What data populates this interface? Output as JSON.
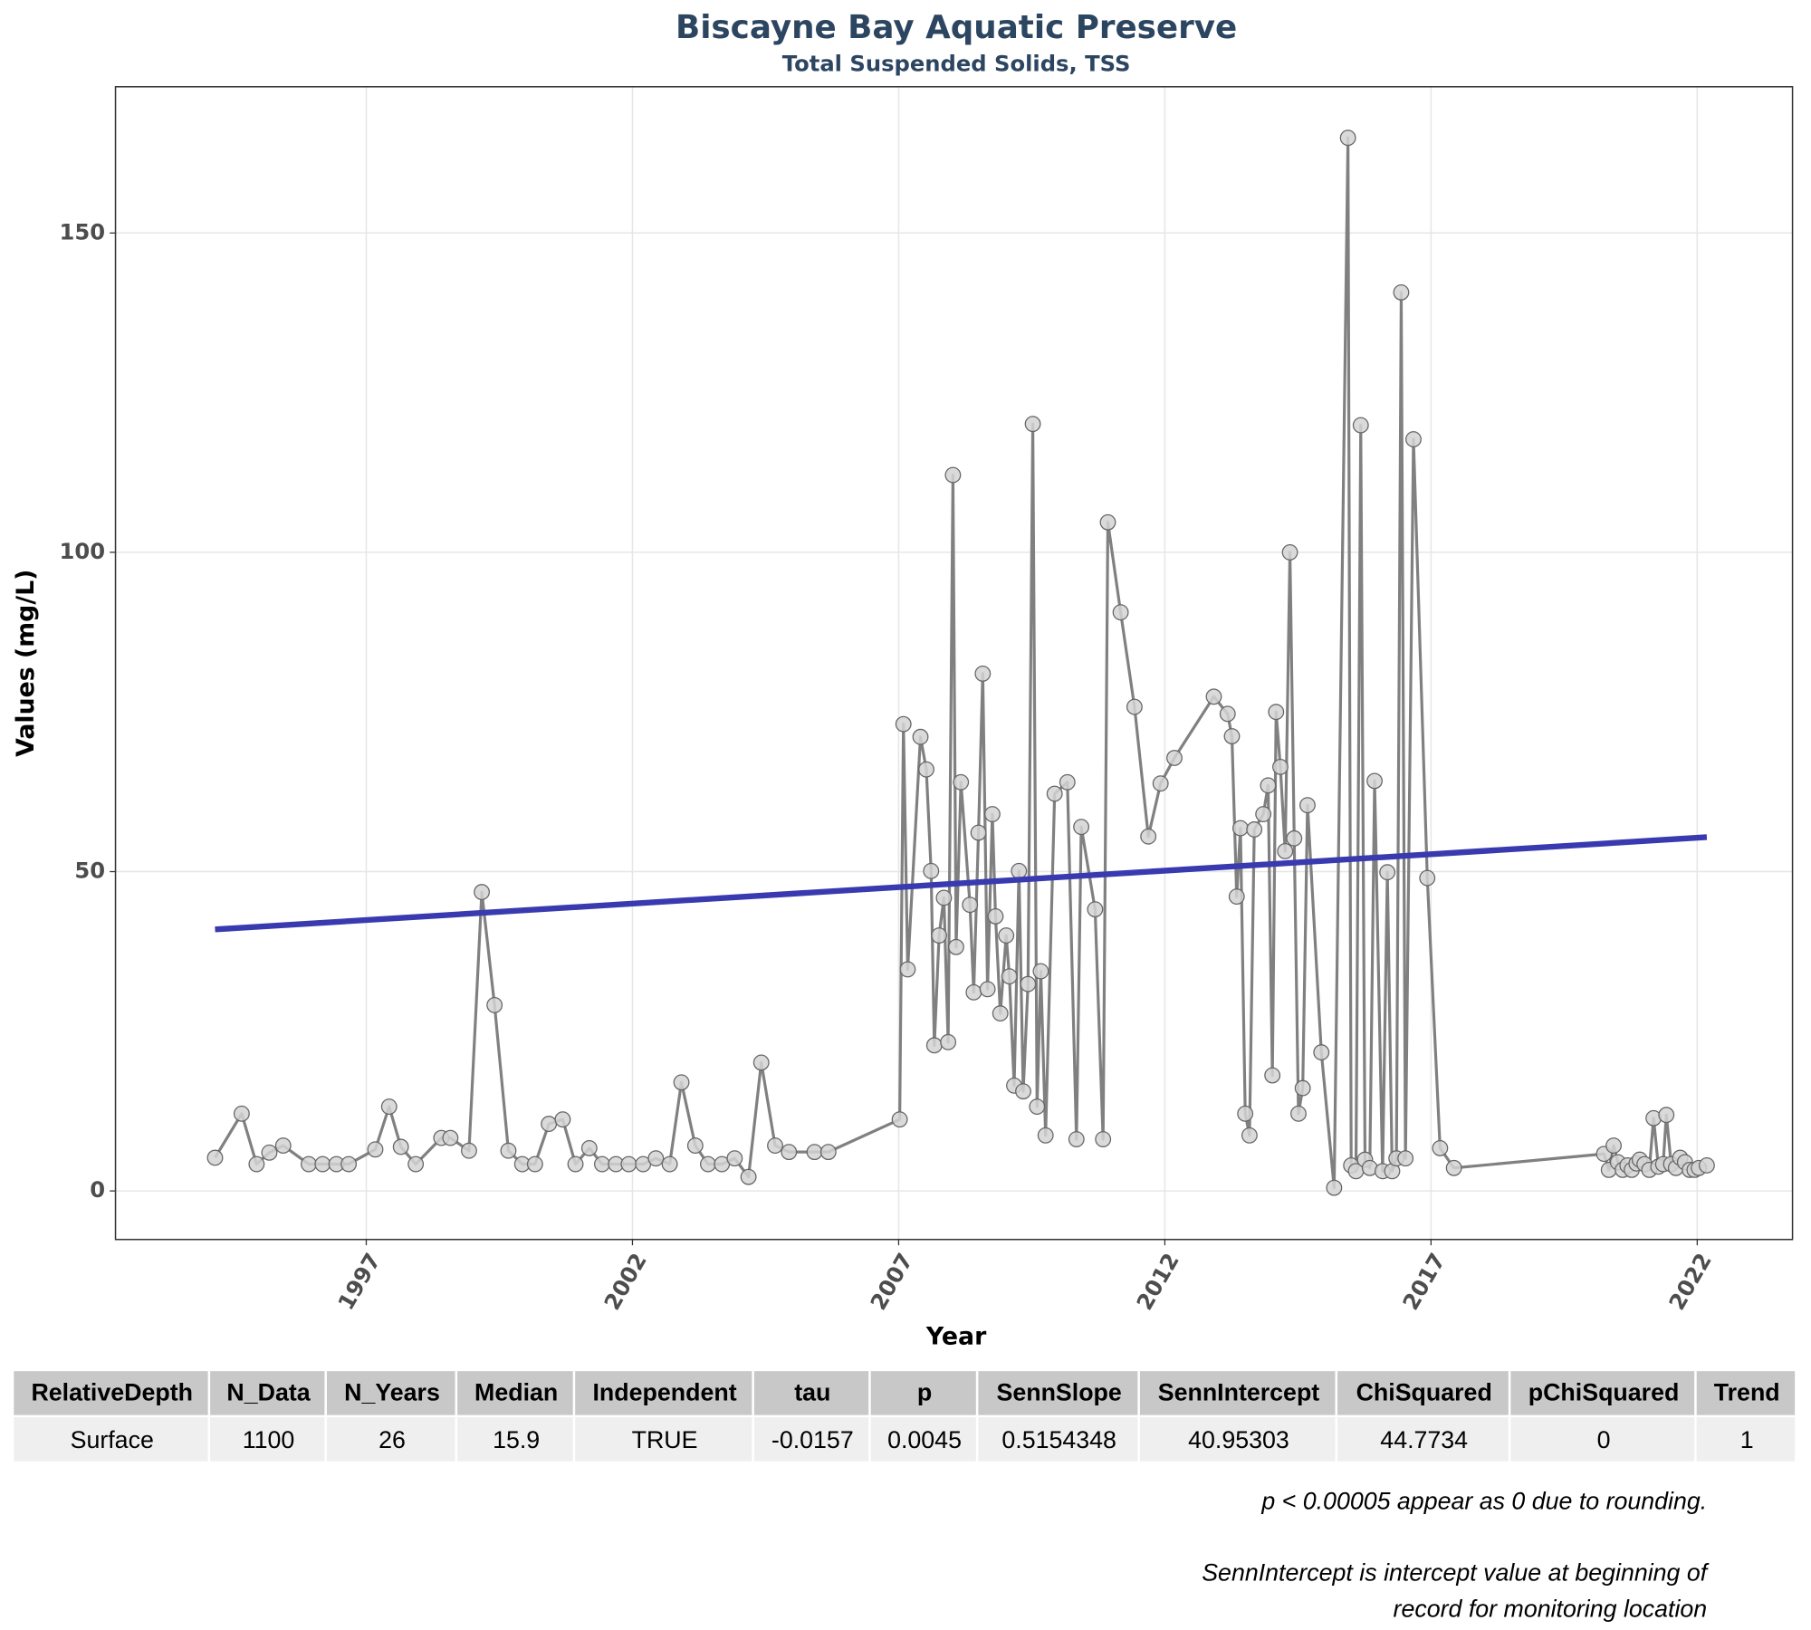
{
  "chart_data": {
    "type": "line",
    "title": "Biscayne Bay Aquatic Preserve",
    "subtitle": "Total Suspended Solids, TSS",
    "x_label": "Year",
    "y_label": "Values (mg/L)",
    "xlim": [
      1992.29,
      2023.79
    ],
    "ylim": [
      -7.6,
      172.9
    ],
    "xticks": [
      1997,
      2002,
      2007,
      2012,
      2017,
      2022
    ],
    "yticks": [
      0,
      50,
      100,
      150
    ],
    "grid": true,
    "series": [
      {
        "color": "#808080",
        "marker_color": "#d3d3d3",
        "x": [
          1994.16,
          1994.66,
          1994.94,
          1995.18,
          1995.44,
          1995.92,
          1996.18,
          1996.44,
          1996.67,
          1997.17,
          1997.43,
          1997.65,
          1997.93,
          1998.41,
          1998.58,
          1998.93,
          1999.17,
          1999.41,
          1999.67,
          1999.93,
          2000.17,
          2000.43,
          2000.69,
          2000.93,
          2001.19,
          2001.43,
          2001.69,
          2001.93,
          2002.2,
          2002.44,
          2002.7,
          2002.92,
          2003.18,
          2003.42,
          2003.68,
          2003.92,
          2004.18,
          2004.42,
          2004.68,
          2004.94,
          2005.42,
          2005.68,
          2007.02,
          2007.09,
          2007.17,
          2007.41,
          2007.52,
          2007.61,
          2007.67,
          2007.76,
          2007.85,
          2007.93,
          2008.02,
          2008.08,
          2008.17,
          2008.34,
          2008.41,
          2008.5,
          2008.58,
          2008.67,
          2008.76,
          2008.82,
          2008.91,
          2009.02,
          2009.08,
          2009.17,
          2009.26,
          2009.34,
          2009.43,
          2009.52,
          2009.6,
          2009.67,
          2009.76,
          2009.93,
          2010.17,
          2010.34,
          2010.43,
          2010.69,
          2010.84,
          2010.93,
          2011.17,
          2011.43,
          2011.69,
          2011.92,
          2012.18,
          2012.92,
          2013.18,
          2013.26,
          2013.35,
          2013.42,
          2013.51,
          2013.59,
          2013.68,
          2013.85,
          2013.94,
          2014.02,
          2014.09,
          2014.17,
          2014.26,
          2014.35,
          2014.43,
          2014.51,
          2014.59,
          2014.68,
          2014.94,
          2015.18,
          2015.44,
          2015.5,
          2015.59,
          2015.68,
          2015.76,
          2015.85,
          2015.94,
          2016.09,
          2016.18,
          2016.27,
          2016.35,
          2016.44,
          2016.52,
          2016.67,
          2016.93,
          2017.17,
          2017.43,
          2020.25,
          2020.34,
          2020.43,
          2020.51,
          2020.6,
          2020.69,
          2020.77,
          2020.86,
          2020.92,
          2021.01,
          2021.1,
          2021.18,
          2021.27,
          2021.36,
          2021.42,
          2021.51,
          2021.6,
          2021.68,
          2021.77,
          2021.86,
          2021.95,
          2022.03,
          2022.18
        ],
        "values": [
          5.2,
          12.1,
          4.2,
          6.0,
          7.1,
          4.2,
          4.2,
          4.2,
          4.2,
          6.5,
          13.2,
          6.9,
          4.2,
          8.3,
          8.3,
          6.3,
          46.8,
          29.1,
          6.3,
          4.2,
          4.2,
          10.5,
          11.2,
          4.2,
          6.7,
          4.2,
          4.2,
          4.2,
          4.2,
          5.1,
          4.2,
          17.0,
          7.1,
          4.2,
          4.2,
          5.1,
          2.2,
          20.1,
          7.1,
          6.1,
          6.1,
          6.1,
          11.2,
          73.1,
          34.7,
          71.1,
          66.0,
          50.1,
          22.8,
          40.0,
          45.9,
          23.3,
          112.1,
          38.2,
          64.0,
          44.8,
          31.1,
          56.1,
          81.0,
          31.6,
          59.0,
          43.0,
          27.8,
          40.0,
          33.6,
          16.5,
          50.1,
          15.6,
          32.4,
          120.1,
          13.2,
          34.4,
          8.7,
          62.2,
          64.0,
          8.1,
          57.0,
          44.1,
          8.1,
          104.7,
          90.6,
          75.8,
          55.5,
          63.8,
          67.8,
          77.4,
          74.7,
          71.2,
          46.1,
          56.8,
          12.1,
          8.7,
          56.6,
          59.0,
          63.5,
          18.1,
          75.0,
          66.4,
          53.2,
          100.0,
          55.2,
          12.1,
          16.1,
          60.4,
          21.7,
          0.5,
          164.9,
          4.0,
          3.1,
          119.9,
          4.9,
          3.6,
          64.2,
          3.1,
          49.9,
          3.1,
          5.1,
          140.7,
          5.1,
          117.7,
          49.0,
          6.7,
          3.6,
          5.8,
          3.3,
          7.1,
          4.5,
          3.3,
          4.0,
          3.3,
          4.3,
          4.9,
          4.2,
          3.3,
          11.4,
          3.8,
          4.2,
          11.9,
          4.2,
          3.6,
          5.2,
          4.5,
          3.3,
          3.3,
          3.6,
          4.0
        ]
      }
    ],
    "trend_color": "#3a3ab0"
  },
  "table": {
    "columns": [
      "RelativeDepth",
      "N_Data",
      "N_Years",
      "Median",
      "Independent",
      "tau",
      "p",
      "SennSlope",
      "SennIntercept",
      "ChiSquared",
      "pChiSquared",
      "Trend"
    ],
    "rows": [
      [
        "Surface",
        "1100",
        "26",
        "15.9",
        "TRUE",
        "-0.0157",
        "0.0045",
        "0.5154348",
        "40.95303",
        "44.7734",
        "0",
        "1"
      ]
    ]
  },
  "notes": [
    "p < 0.00005 appear as 0 due to rounding.",
    "SennIntercept is intercept value at beginning of",
    "record for monitoring location"
  ]
}
